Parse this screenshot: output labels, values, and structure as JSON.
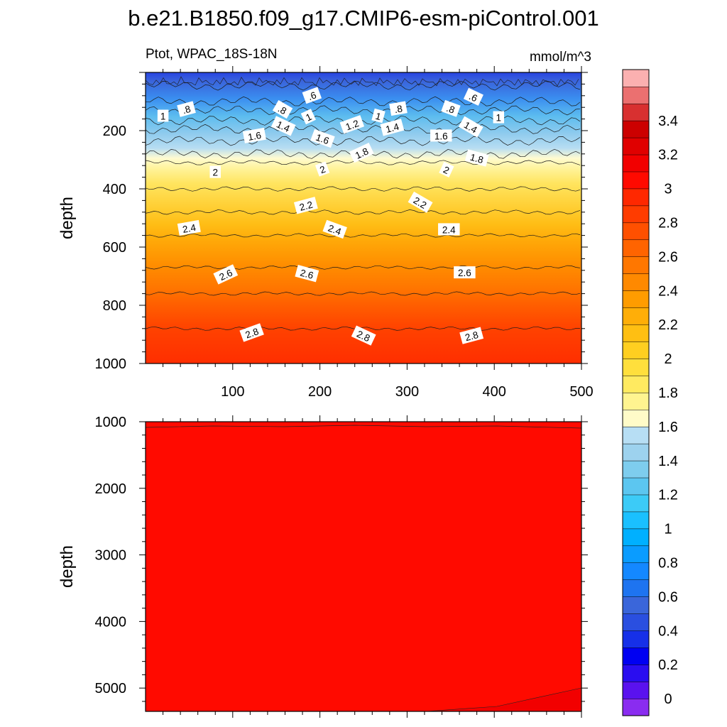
{
  "title": "b.e21.B1850.f09_g17.CMIP6-esm-piControl.001",
  "chart_data": [
    {
      "type": "heatmap",
      "panel": "upper",
      "left_label": "Ptot, WPAC_18S-18N",
      "right_label": "mmol/m^3",
      "xlabel": "",
      "ylabel": "depth",
      "xlim": [
        0,
        500
      ],
      "ylim": [
        1000,
        0
      ],
      "x_ticks": [
        100,
        200,
        300,
        400,
        500
      ],
      "y_ticks": [
        200,
        400,
        600,
        800,
        1000
      ],
      "contour_levels": [
        0.6,
        0.8,
        1,
        1.2,
        1.4,
        1.6,
        1.8,
        2,
        2.2,
        2.4,
        2.6,
        2.8
      ],
      "contour_depths": [
        45,
        100,
        130,
        165,
        195,
        235,
        280,
        310,
        400,
        480,
        560,
        670,
        760,
        880
      ],
      "contour_labels": [
        {
          "text": ".6",
          "x": 191,
          "y": 80
        },
        {
          "text": ".6",
          "x": 376,
          "y": 85
        },
        {
          "text": ".8",
          "x": 47,
          "y": 127
        },
        {
          "text": ".8",
          "x": 157,
          "y": 128
        },
        {
          "text": ".8",
          "x": 290,
          "y": 125
        },
        {
          "text": ".8",
          "x": 350,
          "y": 125
        },
        {
          "text": "1",
          "x": 20,
          "y": 150
        },
        {
          "text": "1",
          "x": 187,
          "y": 153
        },
        {
          "text": "1",
          "x": 267,
          "y": 150
        },
        {
          "text": "1",
          "x": 405,
          "y": 155
        },
        {
          "text": "1.2",
          "x": 237,
          "y": 180
        },
        {
          "text": "1.4",
          "x": 158,
          "y": 185
        },
        {
          "text": "1.4",
          "x": 283,
          "y": 190
        },
        {
          "text": "1.4",
          "x": 373,
          "y": 188
        },
        {
          "text": "1.6",
          "x": 125,
          "y": 218
        },
        {
          "text": "1.6",
          "x": 203,
          "y": 228
        },
        {
          "text": "1.6",
          "x": 339,
          "y": 218
        },
        {
          "text": "1.8",
          "x": 248,
          "y": 277
        },
        {
          "text": "1.8",
          "x": 380,
          "y": 295
        },
        {
          "text": "2",
          "x": 80,
          "y": 343
        },
        {
          "text": "2",
          "x": 203,
          "y": 333
        },
        {
          "text": "2",
          "x": 345,
          "y": 335
        },
        {
          "text": "2.2",
          "x": 184,
          "y": 458
        },
        {
          "text": "2.2",
          "x": 315,
          "y": 447
        },
        {
          "text": "2.4",
          "x": 50,
          "y": 535
        },
        {
          "text": "2.4",
          "x": 217,
          "y": 540
        },
        {
          "text": "2.4",
          "x": 348,
          "y": 540
        },
        {
          "text": "2.6",
          "x": 92,
          "y": 695
        },
        {
          "text": "2.6",
          "x": 185,
          "y": 692
        },
        {
          "text": "2.6",
          "x": 366,
          "y": 688
        },
        {
          "text": "2.8",
          "x": 122,
          "y": 895
        },
        {
          "text": "2.8",
          "x": 250,
          "y": 905
        },
        {
          "text": "2.8",
          "x": 374,
          "y": 905
        }
      ]
    },
    {
      "type": "heatmap",
      "panel": "lower",
      "xlabel": "",
      "ylabel": "depth",
      "xlim": [
        0,
        500
      ],
      "ylim": [
        1000,
        5350
      ],
      "y_ticks": [
        1000,
        2000,
        3000,
        4000,
        5000
      ],
      "fill_value": "3 - 3.1"
    }
  ],
  "colorbar": {
    "tick_labels": [
      "0",
      "0.2",
      "0.4",
      "0.6",
      "0.8",
      "1",
      "1.2",
      "1.4",
      "1.6",
      "1.8",
      "2",
      "2.2",
      "2.4",
      "2.6",
      "2.8",
      "3",
      "3.2",
      "3.4"
    ],
    "levels_from_bottom": [
      -0.1,
      0,
      0.1,
      0.2,
      0.3,
      0.4,
      0.5,
      0.6,
      0.7,
      0.8,
      0.9,
      1.0,
      1.1,
      1.2,
      1.3,
      1.4,
      1.5,
      1.6,
      1.7,
      1.8,
      1.9,
      2.0,
      2.1,
      2.2,
      2.3,
      2.4,
      2.5,
      2.6,
      2.7,
      2.8,
      2.9,
      3.0,
      3.1,
      3.2,
      3.3,
      3.4,
      3.5,
      3.6
    ],
    "colors_from_bottom": [
      "#8a2cf0",
      "#5a12ee",
      "#2a0df0",
      "#0000f2",
      "#1630e8",
      "#2a4fe0",
      "#3a66da",
      "#1e74f0",
      "#1488ff",
      "#0a9cff",
      "#00b0ff",
      "#1ac0ff",
      "#3ccbf7",
      "#5cc6f0",
      "#7ecdee",
      "#9dd2ee",
      "#b7def4",
      "#fffbc8",
      "#fff490",
      "#ffea60",
      "#ffdf3c",
      "#ffcf20",
      "#ffbf12",
      "#ffae08",
      "#ff9c00",
      "#ff8900",
      "#ff7700",
      "#ff6400",
      "#ff5000",
      "#ff3c00",
      "#ff2800",
      "#ff0a00",
      "#f20000",
      "#e00000",
      "#cc0000",
      "#d83030",
      "#eb7070",
      "#fbb0b0"
    ]
  }
}
